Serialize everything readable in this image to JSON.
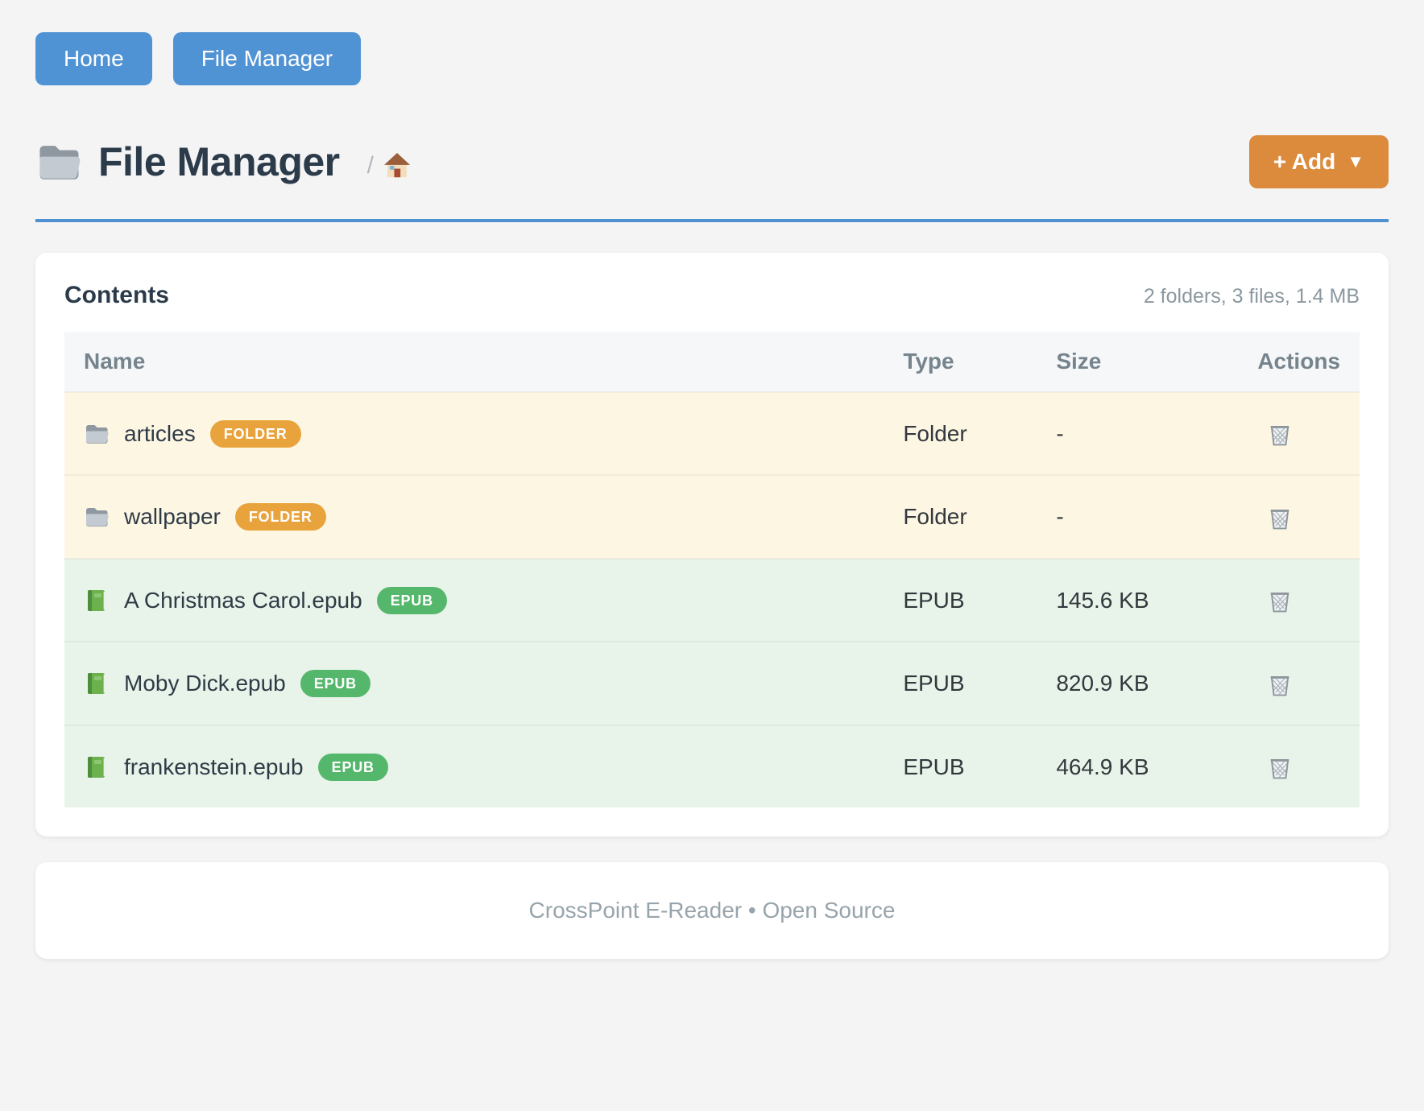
{
  "nav": {
    "home_label": "Home",
    "file_manager_label": "File Manager"
  },
  "header": {
    "title": "File Manager",
    "breadcrumb_separator": "/",
    "add_label": "+ Add",
    "add_caret": "▼"
  },
  "contents": {
    "heading": "Contents",
    "summary": "2 folders, 3 files, 1.4 MB",
    "columns": {
      "name": "Name",
      "type": "Type",
      "size": "Size",
      "actions": "Actions"
    },
    "rows": [
      {
        "name": "articles",
        "badge": "FOLDER",
        "type": "Folder",
        "size": "-",
        "kind": "folder"
      },
      {
        "name": "wallpaper",
        "badge": "FOLDER",
        "type": "Folder",
        "size": "-",
        "kind": "folder"
      },
      {
        "name": "A Christmas Carol.epub",
        "badge": "EPUB",
        "type": "EPUB",
        "size": "145.6 KB",
        "kind": "epub"
      },
      {
        "name": "Moby Dick.epub",
        "badge": "EPUB",
        "type": "EPUB",
        "size": "820.9 KB",
        "kind": "epub"
      },
      {
        "name": "frankenstein.epub",
        "badge": "EPUB",
        "type": "EPUB",
        "size": "464.9 KB",
        "kind": "epub"
      }
    ]
  },
  "footer": {
    "text": "CrossPoint E-Reader • Open Source"
  },
  "colors": {
    "accent_blue": "#5093d5",
    "accent_orange": "#dc8a3b",
    "badge_folder": "#e9a33c",
    "badge_epub": "#55b76c",
    "row_folder_bg": "#fdf6e3",
    "row_epub_bg": "#e8f3e9",
    "divider_blue": "#4e90d2"
  }
}
